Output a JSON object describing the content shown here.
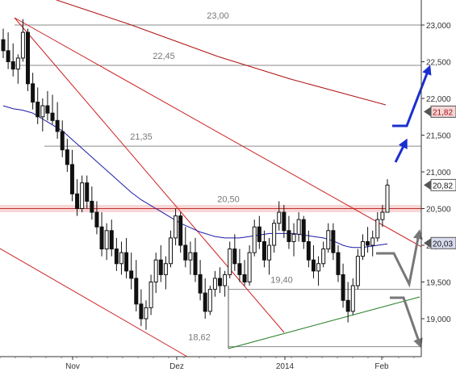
{
  "chart_data": {
    "type": "candlestick",
    "title": "",
    "xlabel": "",
    "ylabel": "",
    "ylim": [
      18.55,
      23.2
    ],
    "x_tick_labels": [
      "Nov",
      "Dez",
      "2014",
      "Feb"
    ],
    "y_tick_labels": [
      "23,000",
      "22,500",
      "22,000",
      "21,500",
      "21,000",
      "20,500",
      "20,000",
      "19,500",
      "19,000"
    ],
    "y_tick_values": [
      23.0,
      22.5,
      22.0,
      21.5,
      21.0,
      20.5,
      20.0,
      19.5,
      19.0
    ],
    "grid": false,
    "series": [
      {
        "type": "candlestick",
        "ohlc": [
          [
            22.8,
            22.95,
            22.55,
            22.65
          ],
          [
            22.65,
            22.9,
            22.4,
            22.5
          ],
          [
            22.5,
            22.75,
            22.3,
            22.4
          ],
          [
            22.4,
            22.6,
            22.2,
            22.55
          ],
          [
            22.55,
            23.08,
            22.5,
            22.9
          ],
          [
            22.9,
            22.95,
            22.1,
            22.2
          ],
          [
            22.2,
            22.35,
            21.85,
            21.95
          ],
          [
            21.95,
            22.15,
            21.65,
            21.75
          ],
          [
            21.75,
            22.0,
            21.55,
            21.9
          ],
          [
            21.9,
            22.1,
            21.7,
            21.8
          ],
          [
            21.8,
            22.05,
            21.65,
            21.7
          ],
          [
            21.7,
            21.95,
            21.45,
            21.55
          ],
          [
            21.55,
            21.7,
            21.2,
            21.3
          ],
          [
            21.3,
            21.45,
            21.0,
            21.1
          ],
          [
            21.1,
            21.3,
            20.6,
            20.7
          ],
          [
            20.7,
            20.9,
            20.4,
            20.5
          ],
          [
            20.5,
            20.95,
            20.45,
            20.85
          ],
          [
            20.85,
            20.95,
            20.5,
            20.6
          ],
          [
            20.6,
            20.8,
            20.35,
            20.45
          ],
          [
            20.45,
            20.6,
            20.15,
            20.25
          ],
          [
            20.25,
            20.45,
            19.85,
            19.95
          ],
          [
            19.95,
            20.3,
            19.8,
            20.2
          ],
          [
            20.2,
            20.35,
            19.85,
            19.95
          ],
          [
            19.95,
            20.1,
            19.65,
            19.75
          ],
          [
            19.75,
            20.05,
            19.6,
            19.9
          ],
          [
            19.9,
            20.1,
            19.55,
            19.65
          ],
          [
            19.65,
            19.9,
            19.4,
            19.55
          ],
          [
            19.55,
            19.8,
            19.1,
            19.2
          ],
          [
            19.2,
            19.4,
            18.9,
            19.0
          ],
          [
            19.0,
            19.25,
            18.85,
            19.15
          ],
          [
            19.15,
            19.6,
            19.05,
            19.5
          ],
          [
            19.5,
            19.9,
            19.35,
            19.8
          ],
          [
            19.8,
            20.0,
            19.5,
            19.6
          ],
          [
            19.6,
            19.85,
            19.4,
            19.75
          ],
          [
            19.75,
            20.2,
            19.7,
            20.1
          ],
          [
            20.1,
            20.5,
            20.0,
            20.4
          ],
          [
            20.4,
            20.45,
            19.9,
            20.0
          ],
          [
            20.0,
            20.25,
            19.7,
            19.8
          ],
          [
            19.8,
            20.05,
            19.6,
            19.9
          ],
          [
            19.9,
            20.1,
            19.5,
            19.6
          ],
          [
            19.6,
            19.8,
            19.25,
            19.35
          ],
          [
            19.35,
            19.55,
            19.0,
            19.1
          ],
          [
            19.1,
            19.45,
            19.05,
            19.4
          ],
          [
            19.4,
            19.65,
            19.3,
            19.55
          ],
          [
            19.55,
            19.7,
            19.35,
            19.45
          ],
          [
            19.45,
            19.65,
            19.3,
            19.6
          ],
          [
            19.6,
            20.05,
            19.55,
            19.95
          ],
          [
            19.95,
            20.15,
            19.65,
            19.75
          ],
          [
            19.75,
            19.95,
            19.5,
            19.6
          ],
          [
            19.6,
            19.8,
            19.45,
            19.5
          ],
          [
            19.5,
            20.0,
            19.45,
            19.9
          ],
          [
            19.9,
            20.35,
            19.85,
            20.25
          ],
          [
            20.25,
            20.4,
            19.95,
            20.05
          ],
          [
            20.05,
            20.2,
            19.7,
            19.8
          ],
          [
            19.8,
            20.1,
            19.6,
            20.0
          ],
          [
            20.0,
            20.35,
            19.9,
            20.3
          ],
          [
            20.3,
            20.6,
            20.2,
            20.45
          ],
          [
            20.45,
            20.55,
            20.1,
            20.2
          ],
          [
            20.2,
            20.4,
            19.95,
            20.05
          ],
          [
            20.05,
            20.3,
            19.85,
            20.15
          ],
          [
            20.15,
            20.45,
            20.05,
            20.35
          ],
          [
            20.35,
            20.4,
            19.95,
            20.05
          ],
          [
            20.05,
            20.2,
            19.7,
            19.8
          ],
          [
            19.8,
            20.0,
            19.55,
            19.65
          ],
          [
            19.65,
            19.85,
            19.45,
            19.75
          ],
          [
            19.75,
            20.05,
            19.7,
            19.95
          ],
          [
            19.95,
            20.3,
            19.9,
            20.2
          ],
          [
            20.2,
            20.3,
            19.8,
            19.9
          ],
          [
            19.9,
            20.0,
            19.5,
            19.6
          ],
          [
            19.6,
            19.75,
            19.15,
            19.25
          ],
          [
            19.25,
            19.5,
            18.95,
            19.1
          ],
          [
            19.1,
            19.55,
            19.05,
            19.45
          ],
          [
            19.45,
            19.95,
            19.4,
            19.85
          ],
          [
            19.85,
            20.15,
            19.8,
            20.05
          ],
          [
            20.05,
            20.25,
            19.9,
            20.0
          ],
          [
            20.0,
            20.2,
            19.85,
            20.1
          ],
          [
            20.1,
            20.45,
            20.05,
            20.35
          ],
          [
            20.35,
            20.55,
            20.25,
            20.45
          ],
          [
            20.45,
            20.9,
            20.45,
            20.82
          ]
        ]
      },
      {
        "type": "line",
        "color": "#1a1aa8",
        "values": [
          21.9,
          21.88,
          21.86,
          21.85,
          21.84,
          21.82,
          21.8,
          21.76,
          21.72,
          21.68,
          21.64,
          21.6,
          21.56,
          21.5,
          21.44,
          21.38,
          21.32,
          21.26,
          21.2,
          21.14,
          21.08,
          21.02,
          20.96,
          20.9,
          20.84,
          20.78,
          20.72,
          20.67,
          20.62,
          20.58,
          20.54,
          20.5,
          20.46,
          20.42,
          20.38,
          20.34,
          20.3,
          20.27,
          20.24,
          20.21,
          20.18,
          20.16,
          20.14,
          20.12,
          20.11,
          20.1,
          20.1,
          20.1,
          20.1,
          20.11,
          20.12,
          20.13,
          20.14,
          20.15,
          20.16,
          20.16,
          20.16,
          20.16,
          20.16,
          20.16,
          20.15,
          20.14,
          20.13,
          20.12,
          20.11,
          20.1,
          20.08,
          20.06,
          20.03,
          20.0,
          19.98,
          19.97,
          19.97,
          19.97,
          19.98,
          19.99,
          20.0,
          20.01,
          20.02
        ]
      },
      {
        "type": "line",
        "color": "#b01010",
        "x": [
          12,
          78
        ],
        "values": [
          23.2,
          21.85
        ]
      }
    ],
    "horizontal_levels": [
      {
        "value": 23.0,
        "label": "23,00"
      },
      {
        "value": 22.45,
        "label": "22,45"
      },
      {
        "value": 21.35,
        "label": "21,35"
      },
      {
        "value": 20.5,
        "label": "20,50"
      },
      {
        "value": 19.4,
        "label": "19,40"
      },
      {
        "value": 18.62,
        "label": "18,62"
      }
    ],
    "price_tags": [
      {
        "value": 21.82,
        "label": "21,82"
      },
      {
        "value": 20.82,
        "label": "20,82"
      },
      {
        "value": 20.03,
        "label": "20,03"
      }
    ]
  }
}
